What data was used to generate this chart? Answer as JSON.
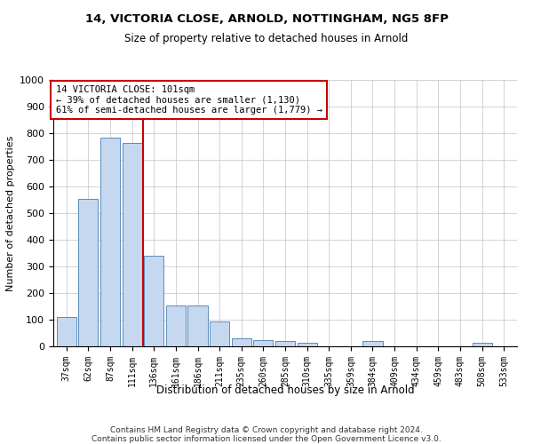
{
  "title1": "14, VICTORIA CLOSE, ARNOLD, NOTTINGHAM, NG5 8FP",
  "title2": "Size of property relative to detached houses in Arnold",
  "xlabel": "Distribution of detached houses by size in Arnold",
  "ylabel": "Number of detached properties",
  "categories": [
    "37sqm",
    "62sqm",
    "87sqm",
    "111sqm",
    "136sqm",
    "161sqm",
    "186sqm",
    "211sqm",
    "235sqm",
    "260sqm",
    "285sqm",
    "310sqm",
    "335sqm",
    "359sqm",
    "384sqm",
    "409sqm",
    "434sqm",
    "459sqm",
    "483sqm",
    "508sqm",
    "533sqm"
  ],
  "values": [
    110,
    555,
    785,
    765,
    340,
    155,
    155,
    95,
    30,
    25,
    20,
    15,
    0,
    0,
    20,
    0,
    0,
    0,
    0,
    15,
    0
  ],
  "bar_color": "#c5d8f0",
  "bar_edge_color": "#5b8db8",
  "grid_color": "#cccccc",
  "annotation_box_color": "#cc0000",
  "vline_color": "#cc0000",
  "vline_position": 3.5,
  "annotation_title": "14 VICTORIA CLOSE: 101sqm",
  "annotation_line1": "← 39% of detached houses are smaller (1,130)",
  "annotation_line2": "61% of semi-detached houses are larger (1,779) →",
  "footer1": "Contains HM Land Registry data © Crown copyright and database right 2024.",
  "footer2": "Contains public sector information licensed under the Open Government Licence v3.0.",
  "ylim": [
    0,
    1000
  ],
  "yticks": [
    0,
    100,
    200,
    300,
    400,
    500,
    600,
    700,
    800,
    900,
    1000
  ]
}
